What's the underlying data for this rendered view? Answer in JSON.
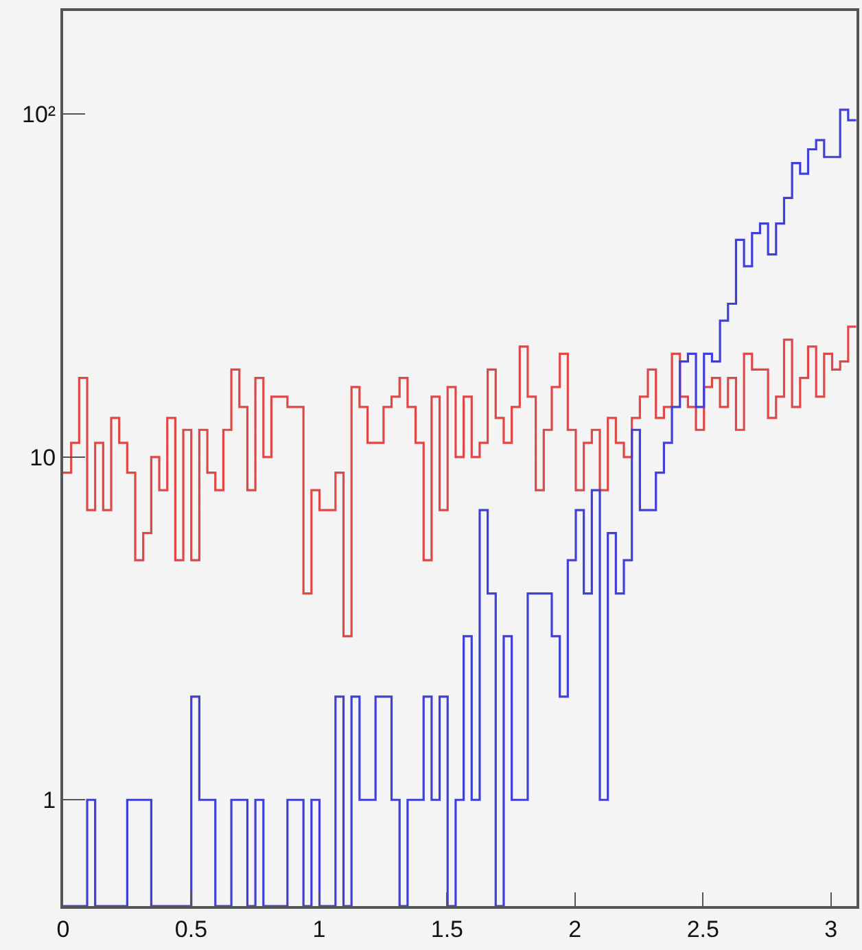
{
  "chart_data": {
    "type": "histogram",
    "log": "y",
    "grid": false,
    "bins": [
      0,
      0.0313,
      0.0626,
      0.0939,
      0.1252,
      0.1565,
      0.1878,
      0.2191,
      0.2504,
      0.2817,
      0.313,
      0.3443,
      0.3756,
      0.4069,
      0.4382,
      0.4695,
      0.5008,
      0.5321,
      0.5634,
      0.5947,
      0.626,
      0.6573,
      0.6886,
      0.7199,
      0.7512,
      0.7825,
      0.8138,
      0.8451,
      0.8764,
      0.9077,
      0.939,
      0.9703,
      1.0016,
      1.0329,
      1.0642,
      1.0955,
      1.1268,
      1.1581,
      1.1894,
      1.2207,
      1.252,
      1.2833,
      1.3146,
      1.3459,
      1.3772,
      1.4085,
      1.4398,
      1.4711,
      1.5024,
      1.5337,
      1.565,
      1.5963,
      1.6276,
      1.6589,
      1.6902,
      1.7215,
      1.7528,
      1.7841,
      1.8154,
      1.8467,
      1.878,
      1.9093,
      1.9406,
      1.9719,
      2.0032,
      2.0345,
      2.0658,
      2.0971,
      2.1284,
      2.1597,
      2.191,
      2.2223,
      2.2536,
      2.2849,
      2.3162,
      2.3475,
      2.3788,
      2.4101,
      2.4414,
      2.4727,
      2.504,
      2.5353,
      2.5666,
      2.5979,
      2.6292,
      2.6605,
      2.6918,
      2.7231,
      2.7544,
      2.7857,
      2.817,
      2.8483,
      2.8796,
      2.9109,
      2.9422,
      2.9735,
      3.0048,
      3.0361,
      3.0674,
      3.0987
    ],
    "series": [
      {
        "color": "#e04848",
        "values": [
          9,
          11,
          17,
          7,
          11,
          7,
          13,
          11,
          9,
          5,
          6,
          10,
          8,
          13,
          5,
          12,
          5,
          12,
          9,
          8,
          12,
          18,
          14,
          8,
          17,
          10,
          15,
          15,
          14,
          14,
          4,
          8,
          7,
          7,
          9,
          3,
          16,
          14,
          11,
          11,
          14,
          15,
          17,
          14,
          11,
          5,
          15,
          7,
          16,
          10,
          15,
          10,
          11,
          18,
          13,
          11,
          14,
          21,
          15,
          8,
          12,
          16,
          20,
          12,
          8,
          11,
          12,
          8,
          13,
          11,
          10,
          13,
          15,
          18,
          13,
          14,
          20,
          15,
          14,
          12,
          16,
          17,
          14,
          17,
          12,
          20,
          18,
          18,
          13,
          15,
          22,
          14,
          17,
          21,
          15,
          20,
          18,
          19,
          24
        ]
      },
      {
        "color": "#4040d8",
        "values": [
          null,
          null,
          null,
          1,
          null,
          null,
          null,
          null,
          1,
          1,
          1,
          null,
          null,
          null,
          null,
          null,
          2,
          1,
          1,
          null,
          null,
          1,
          1,
          null,
          1,
          null,
          null,
          null,
          1,
          1,
          null,
          1,
          null,
          null,
          2,
          null,
          2,
          1,
          1,
          2,
          2,
          1,
          null,
          1,
          1,
          2,
          1,
          2,
          null,
          1,
          3,
          1,
          7,
          4,
          null,
          3,
          1,
          1,
          4,
          4,
          4,
          3,
          2,
          5,
          7,
          4,
          8,
          1,
          6,
          4,
          5,
          12,
          7,
          7,
          9,
          11,
          14,
          19,
          20,
          14,
          20,
          19,
          25,
          28,
          43,
          36,
          45,
          48,
          39,
          48,
          57,
          72,
          67,
          79,
          84,
          75,
          75,
          103,
          96
        ]
      }
    ],
    "xlim": [
      0,
      3.1
    ],
    "xticks": [
      0,
      {
        "value": 0.5,
        "label": "0.5"
      },
      1,
      {
        "value": 1.5,
        "label": "1.5"
      },
      2,
      {
        "value": 2.5,
        "label": "2.5"
      },
      3
    ],
    "ylim": [
      0.49,
      200
    ],
    "yticks": [
      1,
      10,
      {
        "value": 100,
        "label": "10²"
      }
    ]
  }
}
